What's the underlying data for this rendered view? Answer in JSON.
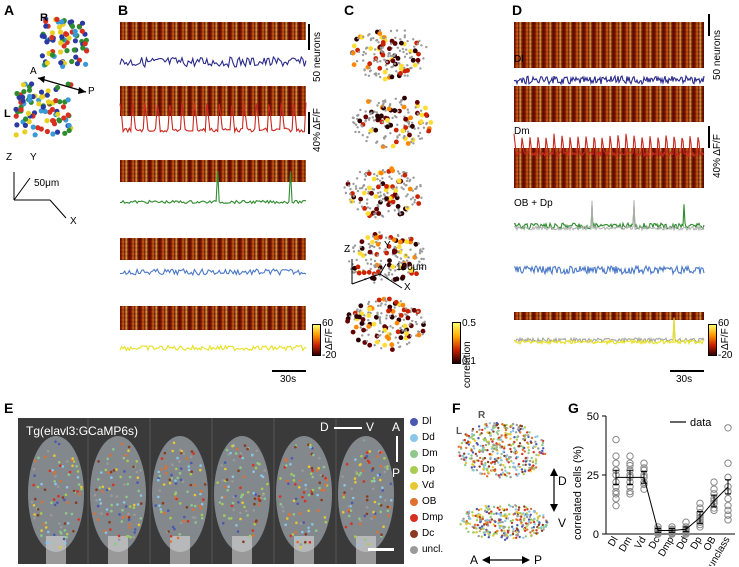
{
  "panels": {
    "a": "A",
    "b": "B",
    "c": "C",
    "d": "D",
    "e": "E",
    "f": "F",
    "g": "G"
  },
  "panel_a": {
    "r": "R",
    "l": "L",
    "a": "A",
    "p": "P",
    "z": "Z",
    "y": "Y",
    "x": "X",
    "scale": "50μm"
  },
  "panel_b": {
    "neurons_scale": "50 neurons",
    "df_scale": "40% ΔF/F",
    "time_scale": "30s",
    "cbar_label": "ΔF/F",
    "cbar_max": "60",
    "cbar_min": "-20",
    "colors": [
      "#2a2a8c",
      "#c8281e",
      "#2e8b2e",
      "#4a78c8",
      "#e8e020"
    ]
  },
  "panel_c": {
    "z": "Z",
    "y": "Y",
    "x": "X",
    "scale": "100μm",
    "cbar_label": "correlation",
    "cbar_max": "0.5",
    "cbar_min": "0.1"
  },
  "panel_d": {
    "neurons_scale": "50 neurons",
    "df_scale": "40% ΔF/F",
    "time_scale": "30s",
    "dl": "Dl",
    "dm": "Dm",
    "obdp": "OB + Dp",
    "cbar_label": "ΔF/F",
    "cbar_max": "60",
    "cbar_min": "-20"
  },
  "panel_e": {
    "title": "Tg(elavl3:GCaMP6s)",
    "d": "D",
    "v": "V",
    "a": "A",
    "p": "P",
    "legend": [
      {
        "label": "Dl",
        "color": "#4a58b0"
      },
      {
        "label": "Dd",
        "color": "#8ac6e8"
      },
      {
        "label": "Dm",
        "color": "#8ec88a"
      },
      {
        "label": "Dp",
        "color": "#a8cc50"
      },
      {
        "label": "Vd",
        "color": "#e8c830"
      },
      {
        "label": "OB",
        "color": "#e07030"
      },
      {
        "label": "Dmp",
        "color": "#d83020"
      },
      {
        "label": "Dc",
        "color": "#8a3a20"
      },
      {
        "label": "uncl.",
        "color": "#9a9a9a"
      }
    ]
  },
  "panel_f": {
    "r": "R",
    "l": "L",
    "d": "D",
    "v": "V",
    "a": "A",
    "p": "P"
  },
  "chart_data": {
    "type": "scatter",
    "ylabel": "correlated cells (%)",
    "legend": "data",
    "ylim": [
      0,
      50
    ],
    "yticks": [
      "0",
      "25",
      "50"
    ],
    "categories": [
      "Dl",
      "Dm",
      "Vd",
      "Dc",
      "Dmp",
      "Dd",
      "Dp",
      "OB",
      "unclass"
    ],
    "means": [
      24,
      24,
      24,
      1.5,
      1.5,
      2,
      7,
      14,
      20
    ],
    "errors": [
      3,
      3,
      2.5,
      0.8,
      0.8,
      1,
      2.5,
      2.5,
      3
    ],
    "points": [
      [
        40,
        33,
        30,
        27,
        25,
        22,
        20,
        18,
        17,
        15,
        12
      ],
      [
        33,
        30,
        29,
        27,
        25,
        24,
        22,
        20,
        18,
        17
      ],
      [
        30,
        28,
        27,
        25,
        24,
        22,
        21,
        19
      ],
      [
        3,
        2,
        2,
        1.5,
        1,
        1,
        0.5,
        0
      ],
      [
        3,
        2,
        2,
        1.5,
        1,
        0.5,
        0.3,
        0
      ],
      [
        5,
        3,
        2,
        2,
        1.5,
        1,
        0.5,
        0
      ],
      [
        13,
        11,
        9,
        8,
        7,
        6,
        5,
        4,
        3
      ],
      [
        22,
        19,
        17,
        15,
        14,
        13,
        11,
        10
      ],
      [
        45,
        30,
        24,
        20,
        18,
        15,
        12,
        10,
        8,
        6
      ]
    ]
  }
}
